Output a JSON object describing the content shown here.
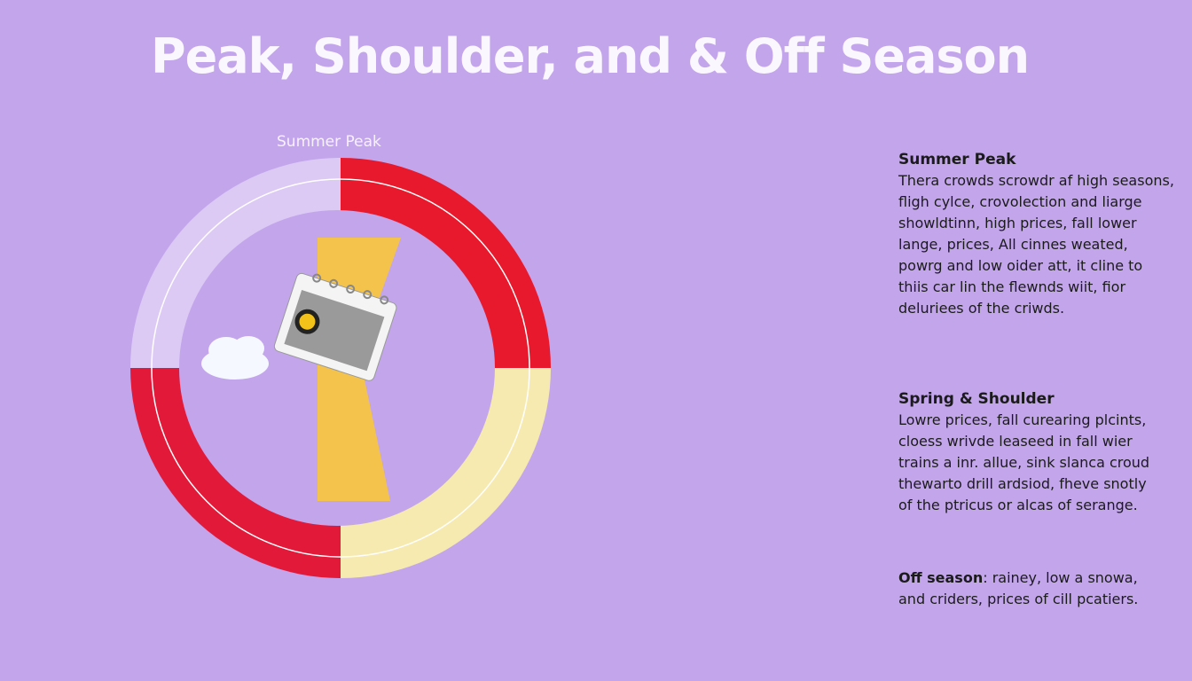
{
  "title": "Peak, Shoulder, and & Off Season",
  "wheel": {
    "label": "Summer Peak",
    "segments": [
      {
        "id": "summer-peak",
        "color": "#e8192c"
      },
      {
        "id": "spring-shoulder",
        "color": "#f6eab0"
      },
      {
        "id": "off-season-red",
        "color": "#e3193a"
      },
      {
        "id": "lavender",
        "color": "#dccaf5"
      }
    ],
    "center_icon": "calendar-icon",
    "inner_wedge_color": "#f4c34c"
  },
  "sections": {
    "summer": {
      "heading": "Summer Peak",
      "lines": [
        "Thera crowds scrowdr af high seasons,",
        "fligh cylce, crovolection and liarge",
        "showldtinn, high prices,  fall lower",
        "lange, prices, All cinnes weated,",
        "powrg and low oider att, it cline to",
        "thiis car lin the flewnds wiit, fior",
        "deluriees of the criwds."
      ]
    },
    "spring": {
      "heading": "Spring & Shoulder",
      "lines": [
        "Lowre prices, fall curearing plcints,",
        "cloess wrivde leaseed in fall wier",
        "trains a inr. allue, sink slanca croud",
        "thewarto drill ardsiod, fheve snotly",
        "of the ptricus or alcas of serange."
      ]
    },
    "off": {
      "heading": "Off season",
      "line1": ": rainey, low a snowa,",
      "line2": "and criders, prices of cill pcatiers."
    }
  }
}
